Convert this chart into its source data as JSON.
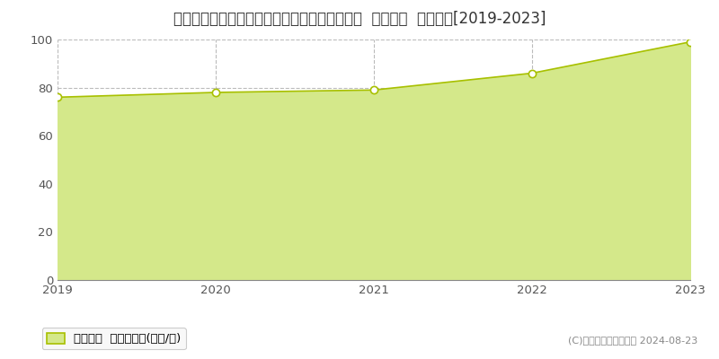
{
  "title": "千葉県流山市おおたかの森西１丁目２８番４外  基準地価  地価推移[2019-2023]",
  "years": [
    2019,
    2020,
    2021,
    2022,
    2023
  ],
  "values": [
    76,
    78,
    79,
    86,
    99
  ],
  "line_color": "#a8c000",
  "fill_color": "#d4e88a",
  "fill_alpha": 1.0,
  "marker_facecolor": "#ffffff",
  "marker_edgecolor": "#a8c000",
  "background_color": "#ffffff",
  "plot_bg_color": "#ffffff",
  "grid_color": "#bbbbbb",
  "ylim": [
    0,
    100
  ],
  "yticks": [
    0,
    20,
    40,
    60,
    80,
    100
  ],
  "legend_label": "基準地価  平均坪単価(万円/坪)",
  "copyright_text": "(C)土地価格ドットコム 2024-08-23",
  "title_fontsize": 12,
  "tick_fontsize": 9.5,
  "legend_fontsize": 9.5,
  "copyright_fontsize": 8
}
